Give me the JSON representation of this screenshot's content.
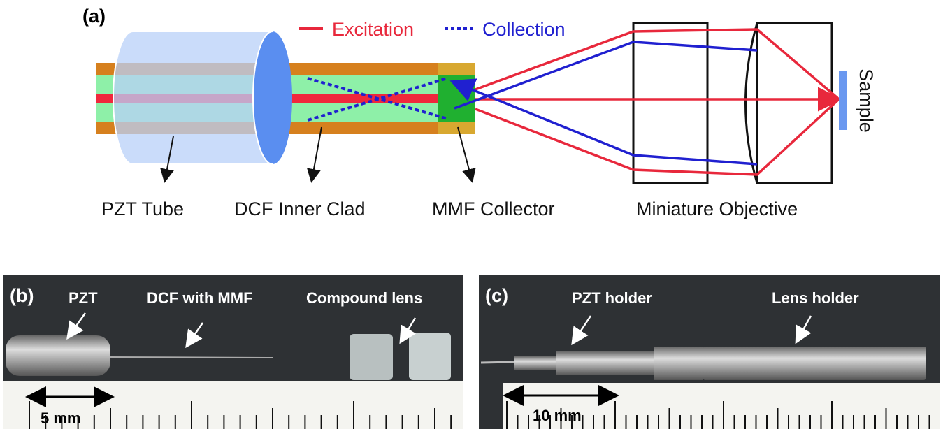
{
  "panel_a": {
    "label": "(a)",
    "legend": {
      "excitation": "Excitation",
      "collection": "Collection"
    },
    "labels": [
      "PZT Tube",
      "DCF Inner Clad",
      "MMF Collector",
      "Miniature Objective"
    ],
    "sample": "Sample"
  },
  "panel_b": {
    "label": "(b)",
    "annotations": [
      "PZT",
      "DCF with MMF",
      "Compound lens"
    ],
    "scale": "5 mm"
  },
  "panel_c": {
    "label": "(c)",
    "annotations": [
      "PZT holder",
      "Lens holder"
    ],
    "scale": "10 mm"
  }
}
